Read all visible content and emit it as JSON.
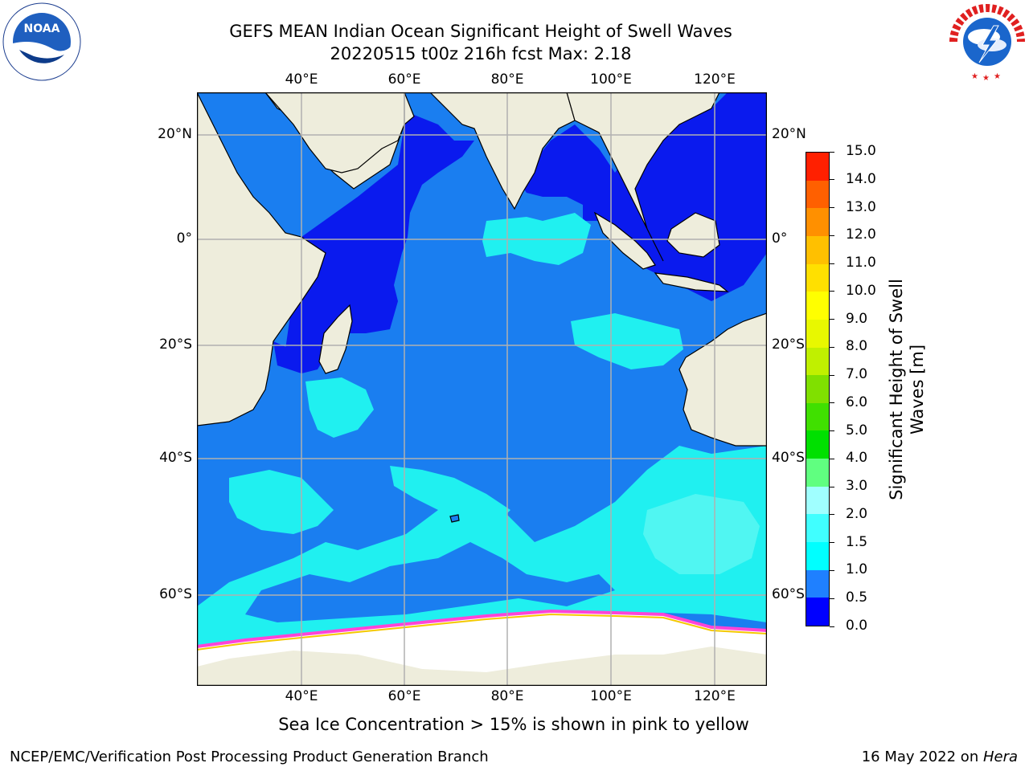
{
  "header": {
    "title_line1": "GEFS MEAN Indian Ocean Significant Height of Swell Waves",
    "title_line2": "20220515 t00z 216h fcst   Max: 2.18"
  },
  "logos": {
    "left": {
      "text": "NOAA",
      "ring_text": "NATIONAL OCEANIC AND ATMOSPHERIC ADMINISTRATION · U.S. DEPARTMENT OF COMMERCE"
    },
    "right": {
      "ring_text": "NATIONAL WEATHER SERVICE"
    }
  },
  "map": {
    "lon_labels": [
      "40°E",
      "60°E",
      "80°E",
      "100°E",
      "120°E"
    ],
    "lat_labels": [
      "20°N",
      "0°",
      "20°S",
      "40°S",
      "60°S"
    ],
    "colors": {
      "land": "#eeeddc",
      "ice": "#ffffff",
      "grid": "#b0b0b0",
      "deep": "#0a1aee",
      "mid": "#1a7ef0",
      "cyan": "#20f0f0",
      "lightcyan": "#50f6f2",
      "ice_edge_pink": "#ff44d8",
      "ice_edge_yellow": "#f4c800"
    },
    "note": "Sea Ice Concentration > 15% is shown in pink to yellow"
  },
  "colorbar": {
    "label_line1": "Significant Height of Swell",
    "label_line2": "Waves [m]",
    "ticks": [
      "0.0",
      "0.5",
      "1.0",
      "1.5",
      "2.0",
      "3.0",
      "4.0",
      "5.0",
      "6.0",
      "7.0",
      "8.0",
      "9.0",
      "10.0",
      "11.0",
      "12.0",
      "13.0",
      "14.0",
      "15.0"
    ],
    "colors": [
      "#0000ff",
      "#1f80ff",
      "#00ffff",
      "#40ffff",
      "#a0ffff",
      "#60ff80",
      "#00e000",
      "#40e000",
      "#80e000",
      "#c0f000",
      "#e8f800",
      "#ffff00",
      "#ffe000",
      "#ffc000",
      "#ff9000",
      "#ff6000",
      "#ff2000"
    ]
  },
  "footer": {
    "left": "NCEP/EMC/Verification Post Processing Product Generation Branch",
    "right_prefix": "16 May 2022 on ",
    "right_italic": "Hera"
  }
}
